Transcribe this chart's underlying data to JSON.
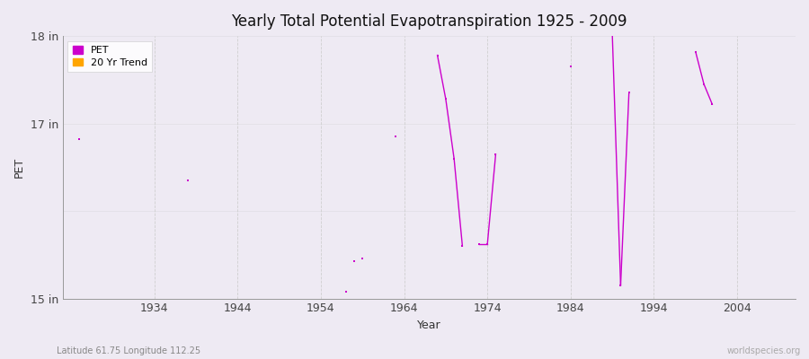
{
  "title": "Yearly Total Potential Evapotranspiration 1925 - 2009",
  "xlabel": "Year",
  "ylabel": "PET",
  "subtitle_left": "Latitude 61.75 Longitude 112.25",
  "subtitle_right": "worldspecies.org",
  "ylim": [
    15.0,
    18.0
  ],
  "xlim": [
    1923,
    2011
  ],
  "yticks": [
    15,
    16,
    17,
    18
  ],
  "ytick_labels": [
    "15 in",
    "",
    "17 in",
    "18 in"
  ],
  "xticks": [
    1934,
    1944,
    1954,
    1964,
    1974,
    1984,
    1994,
    2004
  ],
  "pet_color": "#CC00CC",
  "trend_color": "#FFA500",
  "background_color": "#EEEAF3",
  "segments": [
    {
      "years": [
        1968,
        1969
      ],
      "values": [
        17.78,
        17.28
      ]
    },
    {
      "years": [
        1969,
        1970
      ],
      "values": [
        17.28,
        16.6
      ]
    },
    {
      "years": [
        1970,
        1971
      ],
      "values": [
        16.6,
        15.6
      ]
    },
    {
      "years": [
        1973,
        1974
      ],
      "values": [
        15.62,
        15.62
      ]
    },
    {
      "years": [
        1974,
        1975
      ],
      "values": [
        15.62,
        16.65
      ]
    },
    {
      "years": [
        1989,
        1990
      ],
      "values": [
        18.02,
        15.15
      ]
    },
    {
      "years": [
        1990,
        1991
      ],
      "values": [
        15.15,
        17.35
      ]
    },
    {
      "years": [
        1999,
        2000
      ],
      "values": [
        17.82,
        17.45
      ]
    },
    {
      "years": [
        2000,
        2001
      ],
      "values": [
        17.45,
        17.22
      ]
    }
  ],
  "isolated_years": [
    1925,
    1938,
    1957,
    1958,
    1959,
    1963,
    1984
  ],
  "isolated_values": [
    16.82,
    16.35,
    15.08,
    15.43,
    15.46,
    16.85,
    17.65
  ],
  "grid_color": "#CCCCCC",
  "spine_color": "#999999"
}
